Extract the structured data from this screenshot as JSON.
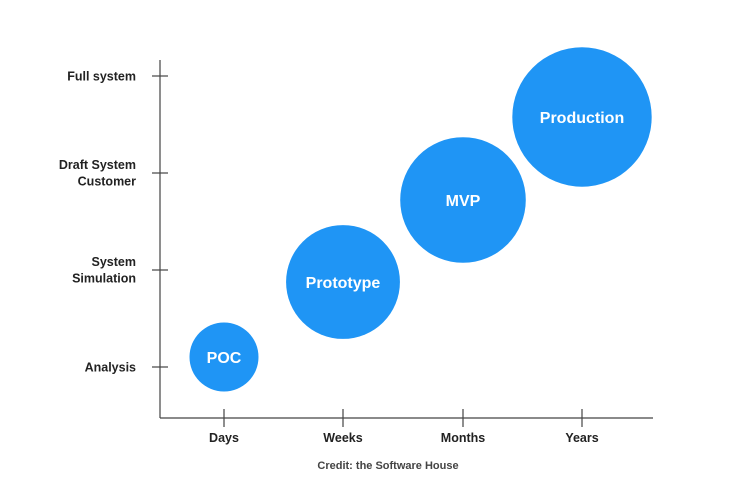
{
  "chart_data": {
    "type": "scatter",
    "x_categories": [
      "Days",
      "Weeks",
      "Months",
      "Years"
    ],
    "y_categories": [
      "Analysis",
      "System Simulation",
      "Draft System Customer",
      "Full system"
    ],
    "y_category_lines": [
      [
        "Analysis"
      ],
      [
        "System",
        "Simulation"
      ],
      [
        "Draft System",
        "Customer"
      ],
      [
        "Full system"
      ]
    ],
    "points": [
      {
        "label": "POC",
        "x": "Days",
        "y": "Analysis",
        "size": 1
      },
      {
        "label": "Prototype",
        "x": "Weeks",
        "y": "System Simulation",
        "size": 1.65
      },
      {
        "label": "MVP",
        "x": "Months",
        "y": "Draft System Customer",
        "size": 1.82
      },
      {
        "label": "Production",
        "x": "Years",
        "y": "Full system",
        "size": 2.02
      }
    ],
    "bubble_color": "#1f95f5",
    "grid": false
  },
  "credit": "Credit: the Software House"
}
